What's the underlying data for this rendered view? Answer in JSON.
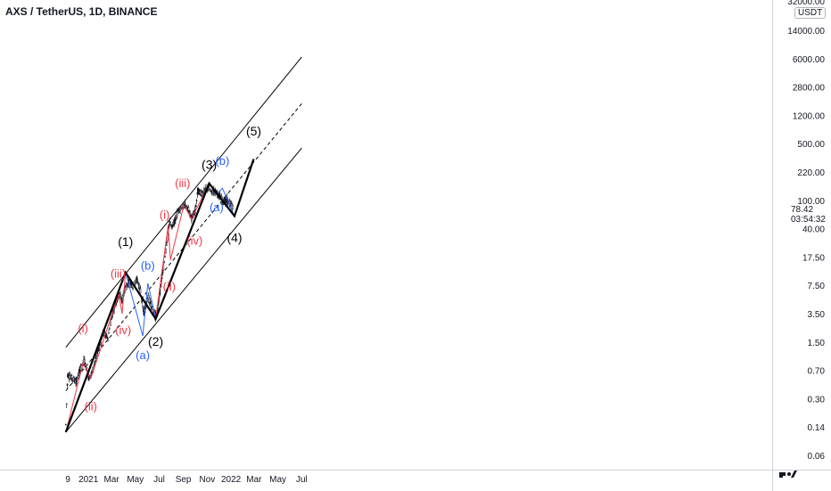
{
  "header": {
    "title": "AXS / TetherUS, 1D, BINANCE"
  },
  "price_scale": {
    "currency": "USDT",
    "labels": [
      "32000.00",
      "14000.00",
      "6000.00",
      "2800.00",
      "1200.00",
      "500.00",
      "220.00",
      "100.00",
      "40.00",
      "17.50",
      "7.50",
      "3.50",
      "1.50",
      "0.70",
      "0.30",
      "0.14",
      "0.06"
    ],
    "current_price": "78.42",
    "countdown": "03:54:32"
  },
  "time_scale": {
    "labels": [
      "9",
      "2021",
      "Mar",
      "May",
      "Jul",
      "Sep",
      "Nov",
      "2022",
      "Mar",
      "May",
      "Jul"
    ]
  },
  "colors": {
    "background": "#ffffff",
    "candles": "#131722",
    "primary_wave": "#000000",
    "sub_wave_red": "#f23645",
    "sub_wave_blue": "#2962ff",
    "channel": "#000000",
    "grid_border": "#d1d4dc"
  },
  "chart_data": {
    "type": "line",
    "title": "AXS / TetherUS, 1D, BINANCE",
    "y_scale": "log",
    "ylim": [
      0.06,
      32000
    ],
    "x_range": [
      "2020-11-09",
      "2022-07-10"
    ],
    "price_path": [
      [
        "2020-11-04",
        0.15
      ],
      [
        "2020-11-09",
        0.6
      ],
      [
        "2020-11-20",
        0.55
      ],
      [
        "2020-12-01",
        0.5
      ],
      [
        "2020-12-12",
        0.75
      ],
      [
        "2020-12-22",
        0.9
      ],
      [
        "2021-01-02",
        0.55
      ],
      [
        "2021-01-12",
        0.7
      ],
      [
        "2021-01-25",
        1.2
      ],
      [
        "2021-02-08",
        2.0
      ],
      [
        "2021-02-20",
        1.7
      ],
      [
        "2021-02-28",
        3.0
      ],
      [
        "2021-03-10",
        4.5
      ],
      [
        "2021-03-22",
        6.0
      ],
      [
        "2021-03-28",
        5.0
      ],
      [
        "2021-04-06",
        7.0
      ],
      [
        "2021-04-15",
        8.5
      ],
      [
        "2021-04-25",
        7.5
      ],
      [
        "2021-05-05",
        9.0
      ],
      [
        "2021-05-14",
        6.5
      ],
      [
        "2021-05-23",
        3.5
      ],
      [
        "2021-06-02",
        5.5
      ],
      [
        "2021-06-12",
        4.2
      ],
      [
        "2021-06-22",
        3.2
      ],
      [
        "2021-06-27",
        4.0
      ],
      [
        "2021-07-06",
        8.0
      ],
      [
        "2021-07-14",
        15
      ],
      [
        "2021-07-22",
        30
      ],
      [
        "2021-07-28",
        50
      ],
      [
        "2021-08-03",
        42
      ],
      [
        "2021-08-12",
        55
      ],
      [
        "2021-08-20",
        75
      ],
      [
        "2021-08-28",
        78
      ],
      [
        "2021-09-05",
        85
      ],
      [
        "2021-09-14",
        75
      ],
      [
        "2021-09-22",
        55
      ],
      [
        "2021-10-01",
        70
      ],
      [
        "2021-10-08",
        130
      ],
      [
        "2021-10-18",
        120
      ],
      [
        "2021-10-27",
        135
      ],
      [
        "2021-11-04",
        140
      ],
      [
        "2021-11-12",
        125
      ],
      [
        "2021-11-20",
        130
      ],
      [
        "2021-11-28",
        120
      ],
      [
        "2021-12-06",
        105
      ],
      [
        "2021-12-14",
        95
      ],
      [
        "2021-12-22",
        100
      ],
      [
        "2022-01-01",
        85
      ],
      [
        "2022-01-07",
        78.42
      ]
    ],
    "primary_wave": [
      {
        "x": "2020-11-04",
        "y": 0.12,
        "label": ""
      },
      {
        "x": "2021-04-06",
        "y": 11,
        "label": "(1)"
      },
      {
        "x": "2021-06-22",
        "y": 3.0,
        "label": "(2)"
      },
      {
        "x": "2021-11-06",
        "y": 160,
        "label": "(3)"
      },
      {
        "x": "2022-01-10",
        "y": 60,
        "label": "(4)"
      },
      {
        "x": "2022-02-28",
        "y": 320,
        "label": "(5)"
      }
    ],
    "sub_waves_red": [
      {
        "points": [
          [
            "2020-11-04",
            0.12
          ],
          [
            "2020-12-18",
            0.85
          ],
          [
            "2021-01-07",
            0.55
          ],
          [
            "2021-03-20",
            6.0
          ],
          [
            "2021-03-28",
            3.5
          ],
          [
            "2021-04-06",
            11
          ]
        ],
        "labels": [
          [
            "2020-12-18",
            2.0,
            "(i)"
          ],
          [
            "2021-01-07",
            0.22,
            "(ii)"
          ],
          [
            "2021-03-18",
            9.5,
            "(iii)"
          ],
          [
            "2021-03-31",
            1.9,
            "(iv)"
          ]
        ]
      },
      {
        "points": [
          [
            "2021-06-22",
            3.0
          ],
          [
            "2021-07-24",
            45
          ],
          [
            "2021-07-30",
            16
          ],
          [
            "2021-09-02",
            85
          ],
          [
            "2021-09-22",
            55
          ],
          [
            "2021-11-06",
            160
          ]
        ],
        "labels": [
          [
            "2021-07-15",
            55,
            "(i)"
          ],
          [
            "2021-07-27",
            6.5,
            "(ii)"
          ],
          [
            "2021-08-30",
            145,
            "(iii)"
          ],
          [
            "2021-09-30",
            25,
            "(iv)"
          ]
        ]
      }
    ],
    "sub_waves_blue": [
      {
        "points": [
          [
            "2021-04-06",
            11
          ],
          [
            "2021-05-20",
            1.8
          ],
          [
            "2021-06-02",
            8.0
          ],
          [
            "2021-06-22",
            3.0
          ]
        ],
        "labels": [
          [
            "2021-05-20",
            0.95,
            "(a)"
          ],
          [
            "2021-06-02",
            12,
            "(b)"
          ]
        ]
      },
      {
        "points": [
          [
            "2021-11-06",
            160
          ],
          [
            "2021-11-28",
            120
          ],
          [
            "2021-12-10",
            140
          ],
          [
            "2022-01-10",
            60
          ]
        ],
        "labels": [
          [
            "2021-11-25",
            70,
            "(a)"
          ],
          [
            "2021-12-10",
            270,
            "(b)"
          ]
        ]
      }
    ],
    "channel_lines": [
      {
        "style": "solid",
        "points": [
          [
            "2020-11-04",
            1.3
          ],
          [
            "2022-07-01",
            6300
          ]
        ]
      },
      {
        "style": "solid",
        "points": [
          [
            "2020-11-04",
            0.12
          ],
          [
            "2022-07-01",
            440
          ]
        ]
      },
      {
        "style": "dashed",
        "points": [
          [
            "2020-11-04",
            0.38
          ],
          [
            "2022-07-01",
            1700
          ]
        ]
      }
    ]
  }
}
